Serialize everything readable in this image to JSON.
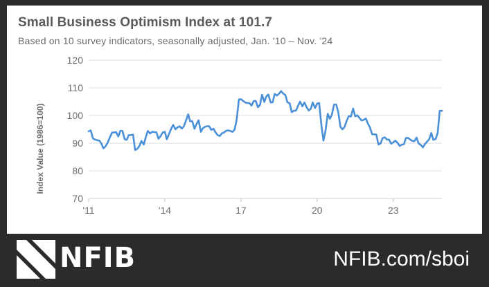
{
  "header": {
    "title": "Small Business Optimism Index at 101.7",
    "subtitle": "Based on 10 survey indicators, seasonally adjusted,  Jan. '10 – Nov. '24"
  },
  "footer": {
    "logo_text": "NFIB",
    "url": "NFIB.com/sboi"
  },
  "colors": {
    "line": "#4a90d9",
    "grid": "#dcdcdc",
    "tick_text": "#6e6e6e",
    "footer_bg": "#2b2b2b"
  },
  "chart_data": {
    "type": "line",
    "title": "Small Business Optimism Index at 101.7",
    "ylabel": "Index Value (1986=100)",
    "ylim": [
      70,
      120
    ],
    "yticks": [
      70,
      80,
      90,
      100,
      110,
      120
    ],
    "xlim": [
      2011.0,
      2024.9167
    ],
    "xticks": [
      {
        "label": "'11",
        "value": 2011
      },
      {
        "label": "'14",
        "value": 2014
      },
      {
        "label": "17",
        "value": 2017
      },
      {
        "label": "20",
        "value": 2020
      },
      {
        "label": "23",
        "value": 2023
      }
    ],
    "grid": true,
    "series": [
      {
        "x": [
          2011.0,
          2011.08,
          2011.17,
          2011.25,
          2011.33,
          2011.42,
          2011.5,
          2011.58,
          2011.67,
          2011.75,
          2011.83,
          2011.92,
          2012.0,
          2012.08,
          2012.17,
          2012.25,
          2012.33,
          2012.42,
          2012.5,
          2012.58,
          2012.67,
          2012.75,
          2012.83,
          2012.92,
          2013.0,
          2013.08,
          2013.17,
          2013.25,
          2013.33,
          2013.42,
          2013.5,
          2013.58,
          2013.67,
          2013.75,
          2013.83,
          2013.92,
          2014.0,
          2014.08,
          2014.17,
          2014.25,
          2014.33,
          2014.42,
          2014.5,
          2014.58,
          2014.67,
          2014.75,
          2014.83,
          2014.92,
          2015.0,
          2015.08,
          2015.17,
          2015.25,
          2015.33,
          2015.42,
          2015.5,
          2015.58,
          2015.67,
          2015.75,
          2015.83,
          2015.92,
          2016.0,
          2016.08,
          2016.17,
          2016.25,
          2016.33,
          2016.42,
          2016.5,
          2016.58,
          2016.67,
          2016.75,
          2016.83,
          2016.92,
          2017.0,
          2017.08,
          2017.17,
          2017.25,
          2017.33,
          2017.42,
          2017.5,
          2017.58,
          2017.67,
          2017.75,
          2017.83,
          2017.92,
          2018.0,
          2018.08,
          2018.17,
          2018.25,
          2018.33,
          2018.42,
          2018.5,
          2018.58,
          2018.67,
          2018.75,
          2018.83,
          2018.92,
          2019.0,
          2019.08,
          2019.17,
          2019.25,
          2019.33,
          2019.42,
          2019.5,
          2019.58,
          2019.67,
          2019.75,
          2019.83,
          2019.92,
          2020.0,
          2020.08,
          2020.17,
          2020.25,
          2020.33,
          2020.42,
          2020.5,
          2020.58,
          2020.67,
          2020.75,
          2020.83,
          2020.92,
          2021.0,
          2021.08,
          2021.17,
          2021.25,
          2021.33,
          2021.42,
          2021.5,
          2021.58,
          2021.67,
          2021.75,
          2021.83,
          2021.92,
          2022.0,
          2022.08,
          2022.17,
          2022.25,
          2022.33,
          2022.42,
          2022.5,
          2022.58,
          2022.67,
          2022.75,
          2022.83,
          2022.92,
          2023.0,
          2023.08,
          2023.17,
          2023.25,
          2023.33,
          2023.42,
          2023.5,
          2023.58,
          2023.67,
          2023.75,
          2023.83,
          2023.92,
          2024.0,
          2024.08,
          2024.17,
          2024.25,
          2024.33,
          2024.42,
          2024.5,
          2024.58,
          2024.67,
          2024.75,
          2024.83,
          2024.92
        ],
        "values": [
          94.3,
          94.6,
          91.7,
          91.3,
          91.1,
          90.9,
          89.9,
          88.1,
          88.9,
          90.2,
          92.0,
          93.8,
          93.9,
          94.0,
          92.4,
          94.5,
          94.4,
          91.4,
          91.2,
          92.9,
          92.9,
          93.1,
          87.5,
          88.0,
          89.0,
          90.8,
          89.5,
          92.1,
          94.4,
          93.5,
          94.1,
          94.0,
          93.9,
          91.6,
          92.5,
          93.9,
          94.1,
          91.4,
          93.4,
          95.2,
          96.6,
          95.0,
          95.7,
          96.1,
          95.3,
          96.1,
          98.1,
          100.4,
          97.9,
          98.0,
          95.2,
          96.9,
          98.3,
          94.1,
          95.4,
          95.9,
          96.1,
          96.1,
          94.8,
          95.2,
          93.9,
          92.9,
          92.6,
          93.6,
          93.8,
          94.5,
          94.6,
          94.4,
          94.1,
          94.9,
          98.4,
          105.8,
          105.9,
          105.3,
          104.7,
          104.5,
          104.5,
          103.6,
          105.2,
          105.3,
          103.0,
          103.8,
          107.5,
          104.9,
          106.9,
          107.6,
          104.7,
          104.8,
          107.8,
          107.2,
          107.9,
          108.8,
          107.9,
          107.4,
          104.8,
          104.4,
          101.2,
          101.7,
          101.8,
          103.5,
          105.0,
          103.3,
          104.7,
          103.1,
          101.8,
          102.4,
          104.7,
          102.7,
          104.3,
          104.5,
          96.4,
          90.9,
          94.4,
          100.6,
          98.8,
          100.2,
          104.0,
          104.0,
          101.4,
          95.9,
          95.0,
          95.8,
          98.2,
          99.8,
          99.6,
          102.5,
          99.7,
          100.1,
          99.1,
          98.2,
          98.4,
          98.9,
          97.1,
          95.7,
          93.2,
          93.2,
          93.1,
          89.5,
          89.9,
          91.8,
          92.1,
          91.3,
          91.3,
          89.8,
          90.3,
          90.9,
          90.1,
          89.0,
          89.4,
          89.6,
          91.9,
          91.9,
          91.3,
          90.8,
          90.7,
          92.0,
          89.9,
          89.4,
          88.5,
          89.7,
          90.5,
          91.5,
          93.7,
          91.2,
          91.5,
          93.7,
          101.7,
          101.7
        ]
      }
    ]
  }
}
